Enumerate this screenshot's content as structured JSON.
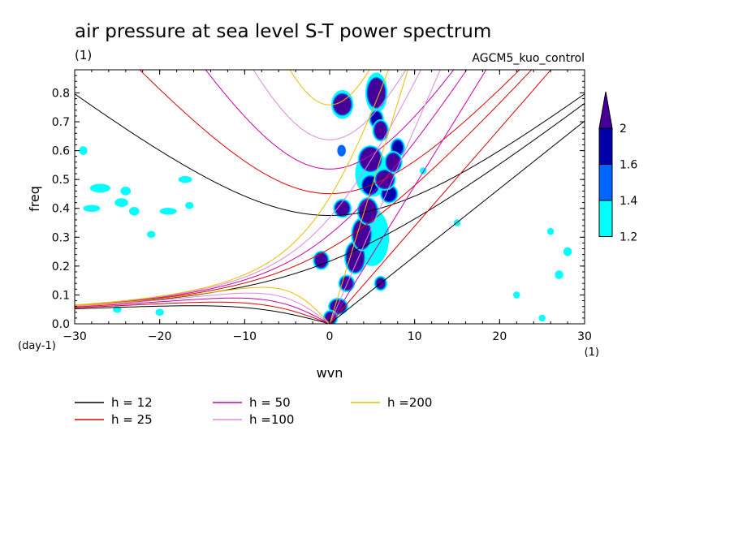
{
  "chart_data": {
    "type": "heatmap",
    "title": "air pressure at sea level S-T power spectrum",
    "subtitle_left": "(1)",
    "subtitle_right": "AGCM5_kuo_control",
    "xlabel": "wvn",
    "ylabel": "freq",
    "x_unit": "(1)",
    "y_unit": "(day-1)",
    "xlim": [
      -30,
      30
    ],
    "ylim": [
      0,
      0.88
    ],
    "x_ticks": [
      -30,
      -20,
      -10,
      0,
      10,
      20,
      30
    ],
    "x_tick_labels": [
      "-30",
      "-20",
      "-10",
      "0",
      "10",
      "20",
      "30"
    ],
    "y_ticks": [
      0.0,
      0.1,
      0.2,
      0.3,
      0.4,
      0.5,
      0.6,
      0.7,
      0.8
    ],
    "y_tick_labels": [
      "0.0",
      "0.1",
      "0.2",
      "0.3",
      "0.4",
      "0.5",
      "0.6",
      "0.7",
      "0.8"
    ],
    "colorbar": {
      "levels": [
        1.2,
        1.4,
        1.6,
        2
      ],
      "labels": [
        "1.2",
        "1.4",
        "1.6",
        "2"
      ],
      "colors": [
        "#00ffff",
        "#0066ff",
        "#0000aa",
        "#440099"
      ]
    },
    "dispersion_curves": [
      {
        "label": "h = 12",
        "h": 12,
        "color": "#000000"
      },
      {
        "label": "h = 25",
        "h": 25,
        "color": "#dd0000"
      },
      {
        "label": "h = 50",
        "h": 50,
        "color": "#cc00aa"
      },
      {
        "label": "h =100",
        "h": 100,
        "color": "#dd88dd"
      },
      {
        "label": "h =200",
        "h": 200,
        "color": "#eebb00"
      }
    ],
    "blobs": [
      {
        "x": 1.5,
        "y": 0.76,
        "rx": 1.0,
        "ry": 0.035,
        "level": 3
      },
      {
        "x": 1.4,
        "y": 0.6,
        "rx": 0.5,
        "ry": 0.02,
        "level": 1
      },
      {
        "x": 1.5,
        "y": 0.4,
        "rx": 0.8,
        "ry": 0.025,
        "level": 3
      },
      {
        "x": -1.0,
        "y": 0.22,
        "rx": 0.7,
        "ry": 0.025,
        "level": 3
      },
      {
        "x": 2.0,
        "y": 0.14,
        "rx": 0.7,
        "ry": 0.022,
        "level": 3
      },
      {
        "x": 1.0,
        "y": 0.06,
        "rx": 0.9,
        "ry": 0.022,
        "level": 3
      },
      {
        "x": 0.1,
        "y": 0.02,
        "rx": 0.6,
        "ry": 0.02,
        "level": 3
      },
      {
        "x": 3.0,
        "y": 0.23,
        "rx": 1.0,
        "ry": 0.05,
        "level": 3
      },
      {
        "x": 3.8,
        "y": 0.31,
        "rx": 1.0,
        "ry": 0.05,
        "level": 3
      },
      {
        "x": 4.5,
        "y": 0.39,
        "rx": 1.0,
        "ry": 0.04,
        "level": 3
      },
      {
        "x": 4.8,
        "y": 0.48,
        "rx": 0.9,
        "ry": 0.03,
        "level": 2
      },
      {
        "x": 4.8,
        "y": 0.57,
        "rx": 1.2,
        "ry": 0.04,
        "level": 3
      },
      {
        "x": 6.5,
        "y": 0.5,
        "rx": 1.0,
        "ry": 0.03,
        "level": 3
      },
      {
        "x": 7.5,
        "y": 0.56,
        "rx": 0.8,
        "ry": 0.03,
        "level": 3
      },
      {
        "x": 8.0,
        "y": 0.61,
        "rx": 0.6,
        "ry": 0.025,
        "level": 2
      },
      {
        "x": 5.5,
        "y": 0.8,
        "rx": 1.0,
        "ry": 0.05,
        "level": 3
      },
      {
        "x": 6.0,
        "y": 0.67,
        "rx": 0.7,
        "ry": 0.03,
        "level": 3
      },
      {
        "x": 5.5,
        "y": 0.71,
        "rx": 0.6,
        "ry": 0.025,
        "level": 2
      },
      {
        "x": 6.0,
        "y": 0.14,
        "rx": 0.5,
        "ry": 0.018,
        "level": 3
      },
      {
        "x": 7.0,
        "y": 0.45,
        "rx": 0.8,
        "ry": 0.025,
        "level": 2
      },
      {
        "x": -29.0,
        "y": 0.6,
        "rx": 0.5,
        "ry": 0.015,
        "level": 0
      },
      {
        "x": -27.0,
        "y": 0.47,
        "rx": 1.2,
        "ry": 0.015,
        "level": 0
      },
      {
        "x": -24.0,
        "y": 0.46,
        "rx": 0.6,
        "ry": 0.015,
        "level": 0
      },
      {
        "x": -24.5,
        "y": 0.42,
        "rx": 0.8,
        "ry": 0.015,
        "level": 0
      },
      {
        "x": -23.0,
        "y": 0.39,
        "rx": 0.6,
        "ry": 0.015,
        "level": 0
      },
      {
        "x": -28.0,
        "y": 0.4,
        "rx": 1.0,
        "ry": 0.012,
        "level": 0
      },
      {
        "x": -19.0,
        "y": 0.39,
        "rx": 1.0,
        "ry": 0.012,
        "level": 0
      },
      {
        "x": -17.0,
        "y": 0.5,
        "rx": 0.8,
        "ry": 0.012,
        "level": 0
      },
      {
        "x": -21.0,
        "y": 0.31,
        "rx": 0.5,
        "ry": 0.012,
        "level": 0
      },
      {
        "x": -20.0,
        "y": 0.04,
        "rx": 0.5,
        "ry": 0.012,
        "level": 0
      },
      {
        "x": -25.0,
        "y": 0.05,
        "rx": 0.5,
        "ry": 0.012,
        "level": 0
      },
      {
        "x": -16.5,
        "y": 0.41,
        "rx": 0.5,
        "ry": 0.012,
        "level": 0
      },
      {
        "x": 28.0,
        "y": 0.25,
        "rx": 0.5,
        "ry": 0.015,
        "level": 0
      },
      {
        "x": 27.0,
        "y": 0.17,
        "rx": 0.5,
        "ry": 0.015,
        "level": 0
      },
      {
        "x": 26.0,
        "y": 0.32,
        "rx": 0.4,
        "ry": 0.012,
        "level": 0
      },
      {
        "x": 22.0,
        "y": 0.1,
        "rx": 0.4,
        "ry": 0.012,
        "level": 0
      },
      {
        "x": 25.0,
        "y": 0.02,
        "rx": 0.4,
        "ry": 0.012,
        "level": 0
      },
      {
        "x": 11.0,
        "y": 0.53,
        "rx": 0.4,
        "ry": 0.012,
        "level": 0
      },
      {
        "x": 15.0,
        "y": 0.35,
        "rx": 0.4,
        "ry": 0.012,
        "level": 0
      },
      {
        "x": 5.0,
        "y": 0.52,
        "rx": 2.0,
        "ry": 0.08,
        "level": 0
      },
      {
        "x": 5.0,
        "y": 0.3,
        "rx": 2.0,
        "ry": 0.1,
        "level": 0
      },
      {
        "x": 1.5,
        "y": 0.76,
        "rx": 1.3,
        "ry": 0.05,
        "level": 0
      },
      {
        "x": 5.5,
        "y": 0.8,
        "rx": 1.3,
        "ry": 0.07,
        "level": 0
      }
    ]
  }
}
